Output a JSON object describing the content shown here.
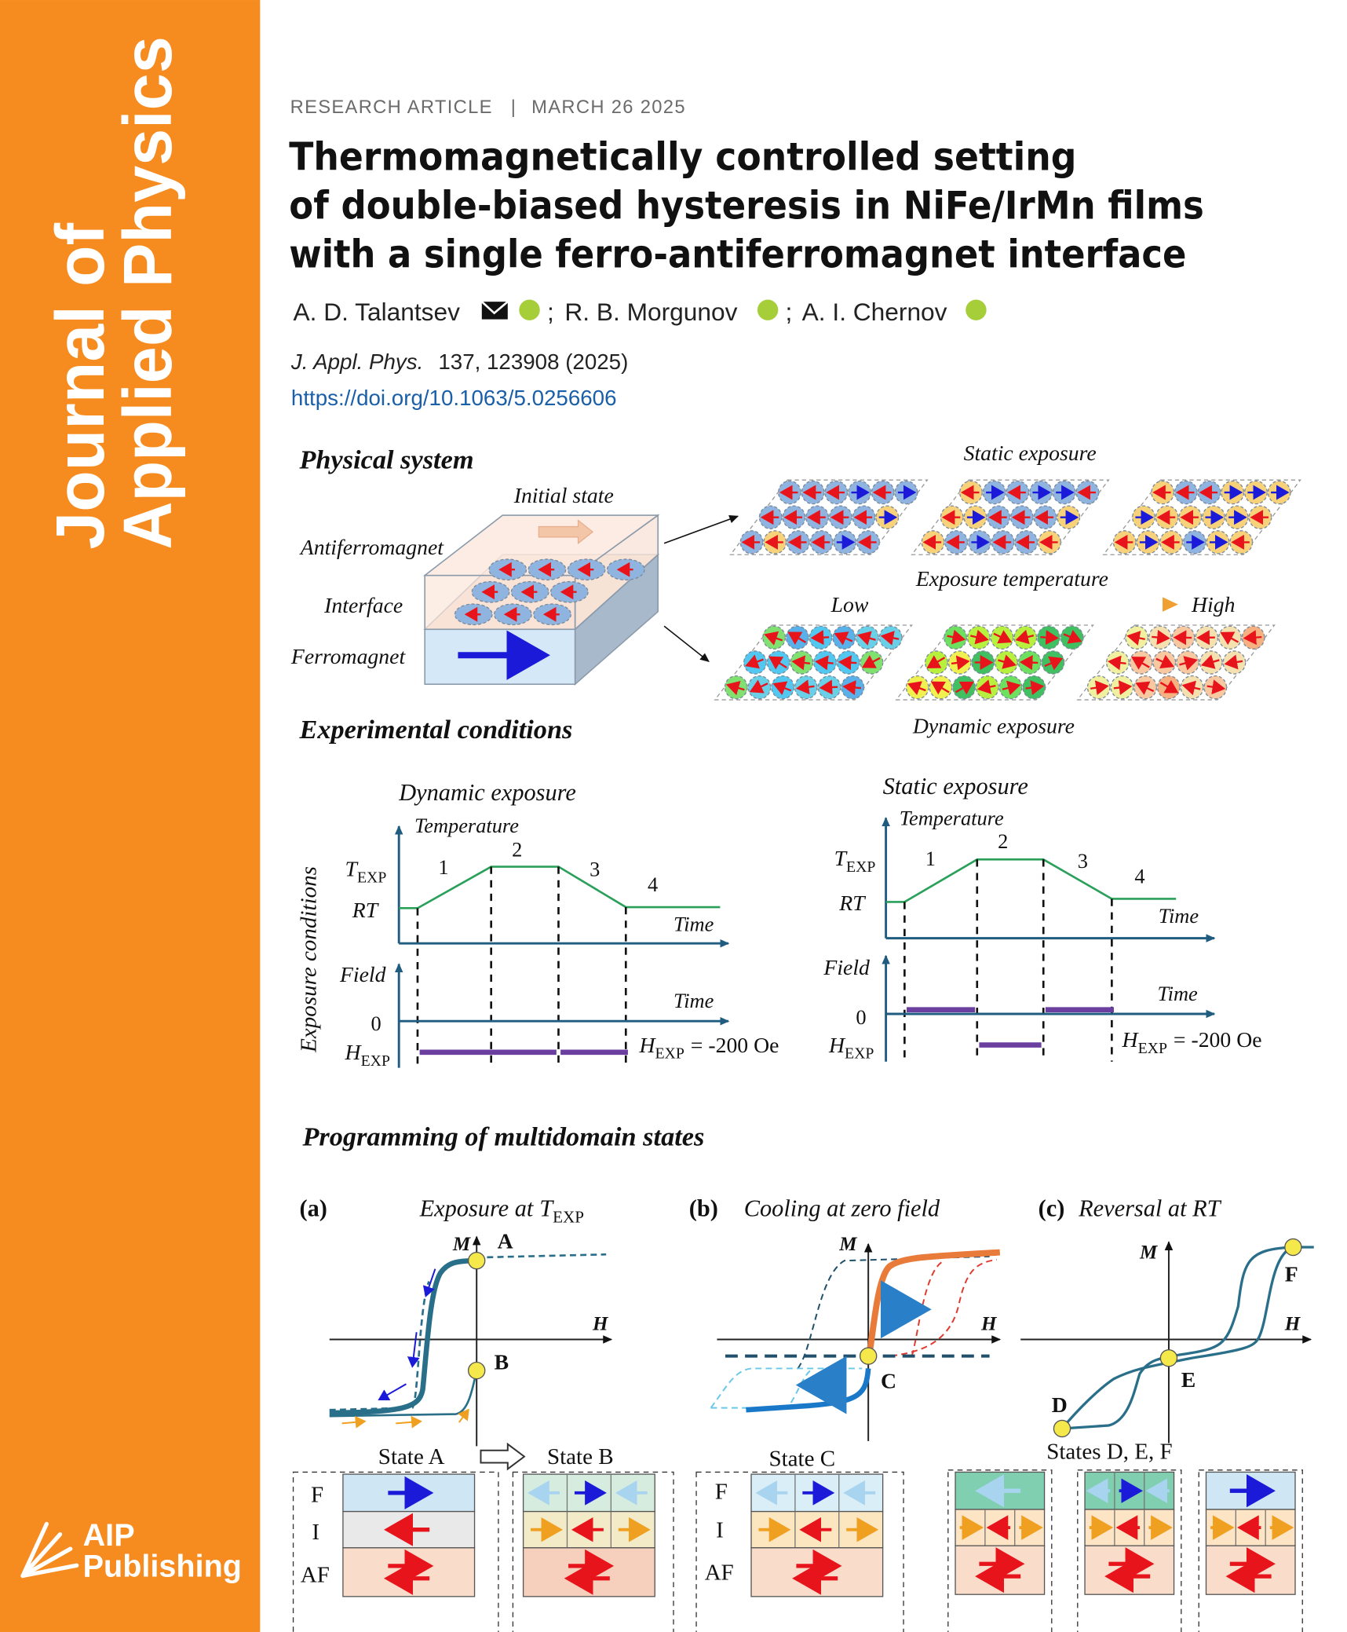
{
  "sidebar": {
    "journal_line1": "Journal of",
    "journal_line2": "Applied Physics",
    "publisher_line1": "AIP",
    "publisher_line2": "Publishing"
  },
  "header": {
    "article_type": "RESEARCH ARTICLE",
    "separator": "|",
    "date": "MARCH 26 2025",
    "title_lines": [
      "Thermomagnetically controlled setting",
      "of double-biased hysteresis in NiFe/IrMn films",
      "with a single ferro-antiferromagnet interface"
    ],
    "authors": [
      "A. D. Talantsev",
      "R. B. Morgunov",
      "A. I. Chernov"
    ],
    "author_separator": ";",
    "citation": {
      "journal": "J. Appl. Phys.",
      "details": "137, 123908 (2025)"
    },
    "doi": "https://doi.org/10.1063/5.0256606"
  },
  "figure": {
    "physical_system": {
      "heading": "Physical system",
      "initial_state": "Initial state",
      "layers": [
        "Antiferromagnet",
        "Interface",
        "Ferromagnet"
      ],
      "static_exposure": "Static exposure",
      "exposure_temperature": "Exposure temperature",
      "low": "Low",
      "high": "High",
      "dynamic_exposure": "Dynamic exposure"
    },
    "experimental_conditions": {
      "heading": "Experimental conditions",
      "y_label": "Exposure conditions",
      "panels": [
        {
          "title": "Dynamic exposure",
          "temperature": "Temperature",
          "t_symbol": "T",
          "t_sub": "EXP",
          "rt": "RT",
          "stages": [
            "1",
            "2",
            "3",
            "4"
          ],
          "time": "Time",
          "field": "Field",
          "zero": "0",
          "h_symbol": "H",
          "h_sub": "EXP",
          "h_value": "= -200 Oe"
        },
        {
          "title": "Static exposure",
          "temperature": "Temperature",
          "t_symbol": "T",
          "t_sub": "EXP",
          "rt": "RT",
          "stages": [
            "1",
            "2",
            "3",
            "4"
          ],
          "time": "Time",
          "field": "Field",
          "zero": "0",
          "h_symbol": "H",
          "h_sub": "EXP",
          "h_value": "= -200 Oe"
        }
      ]
    },
    "programming": {
      "heading": "Programming of multidomain states",
      "panels": [
        {
          "tag": "(a)",
          "caption": "Exposure at",
          "caption_symbol": "T",
          "caption_sub": "EXP",
          "m": "M",
          "h": "H",
          "points": [
            "A",
            "B"
          ]
        },
        {
          "tag": "(b)",
          "caption": "Cooling at zero field",
          "m": "M",
          "h": "H",
          "points": [
            "C"
          ]
        },
        {
          "tag": "(c)",
          "caption": "Reversal at RT",
          "m": "M",
          "h": "H",
          "points": [
            "D",
            "E",
            "F"
          ]
        }
      ],
      "states": [
        {
          "label": "State A",
          "layers": [
            "F",
            "I",
            "AF"
          ]
        },
        {
          "label": "State B"
        },
        {
          "label": "State C",
          "layers": [
            "F",
            "I",
            "AF"
          ]
        },
        {
          "label": "States D, E, F"
        }
      ]
    }
  }
}
